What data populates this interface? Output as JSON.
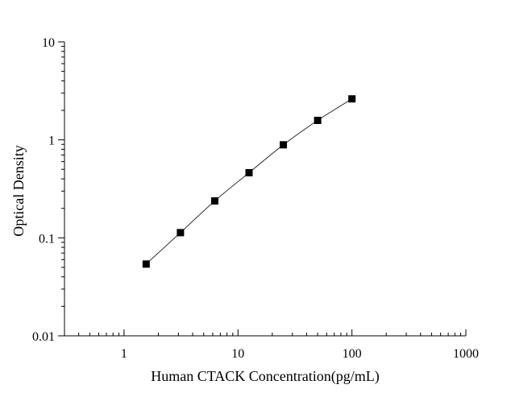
{
  "chart_data": {
    "type": "scatter",
    "title": "",
    "xlabel": "Human CTACK Concentration(pg/mL)",
    "ylabel": "Optical Density",
    "x_scale": "log",
    "y_scale": "log",
    "xlim": [
      0.3,
      1000
    ],
    "ylim": [
      0.01,
      10
    ],
    "x_ticks": [
      1,
      10,
      100,
      1000
    ],
    "x_tick_labels": [
      "1",
      "10",
      "100",
      "1000"
    ],
    "y_ticks": [
      0.01,
      0.1,
      1,
      10
    ],
    "y_tick_labels": [
      "0.01",
      "0.1",
      "1",
      "10"
    ],
    "grid": false,
    "legend": "none",
    "series": [
      {
        "marker": "square",
        "color": "#000000",
        "line_color": "#333333",
        "fitted_curve": true,
        "x": [
          1.5625,
          3.125,
          6.25,
          12.5,
          25,
          50,
          100
        ],
        "y": [
          0.054,
          0.113,
          0.238,
          0.462,
          0.89,
          1.58,
          2.62
        ]
      }
    ]
  }
}
